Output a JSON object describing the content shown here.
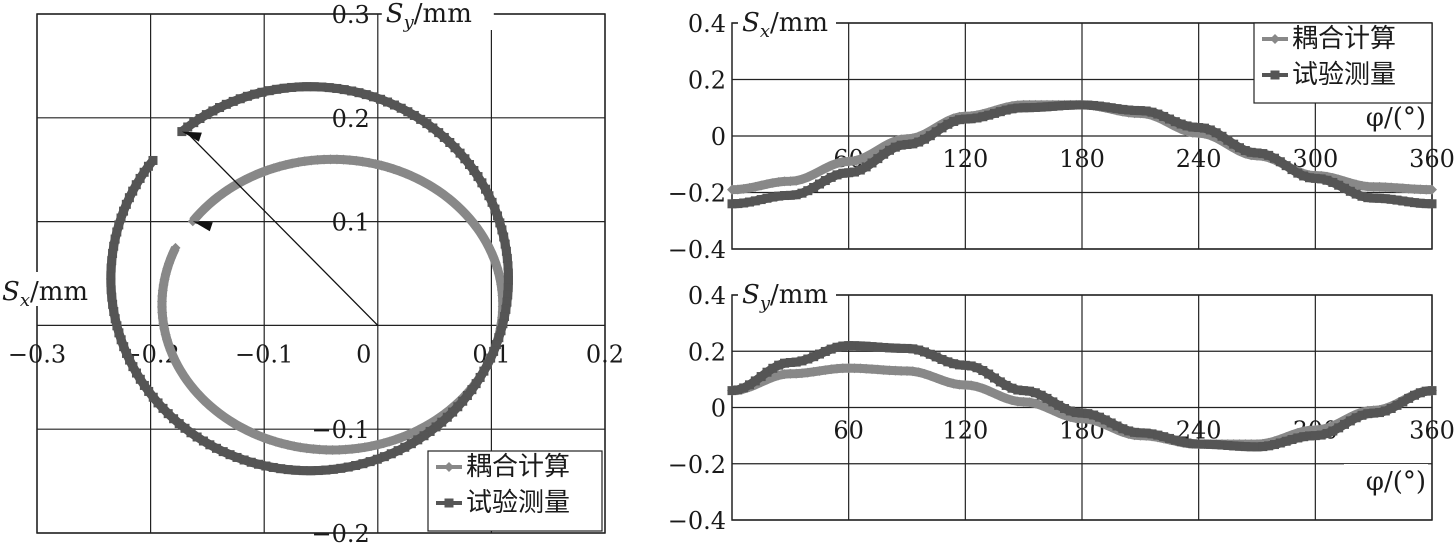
{
  "chart_data": [
    {
      "type": "line",
      "x_axis_label": "S",
      "x_axis_sub": "x",
      "x_axis_unit": "/mm",
      "y_axis_label": "S",
      "y_axis_sub": "y",
      "y_axis_unit": "/mm",
      "xlim": [
        -0.3,
        0.2
      ],
      "ylim": [
        -0.2,
        0.3
      ],
      "x_ticks": [
        {
          "value": -0.3,
          "label": "−0.3"
        },
        {
          "value": -0.2,
          "label": "−0.2"
        },
        {
          "value": -0.1,
          "label": "−0.1"
        },
        {
          "value": 0,
          "label": "0"
        },
        {
          "value": 0.1,
          "label": "0.1"
        },
        {
          "value": 0.2,
          "label": "0.2"
        }
      ],
      "y_ticks": [
        {
          "value": 0.3,
          "label": "0.3"
        },
        {
          "value": 0.2,
          "label": "0.2"
        },
        {
          "value": 0.1,
          "label": "0.1"
        },
        {
          "value": -0.1,
          "label": "−0.1"
        },
        {
          "value": -0.2,
          "label": "−0.2"
        }
      ],
      "grid": true,
      "legend_position": "bottom-right",
      "series": [
        {
          "name": "耦合计算",
          "color": "#888888",
          "marker": "diamond",
          "center": [
            -0.04,
            0.02
          ],
          "radii": [
            0.15,
            0.14
          ],
          "phase_deg": 145
        },
        {
          "name": "试验测量",
          "color": "#555555",
          "marker": "square",
          "center": [
            -0.06,
            0.045
          ],
          "radii": [
            0.175,
            0.185
          ],
          "phase_deg": 130
        }
      ],
      "annotation": "arrow from origin to the start points of both orbits"
    },
    {
      "type": "line",
      "y_axis_label": "S",
      "y_axis_sub": "x",
      "y_axis_unit": "/mm",
      "x_axis_title": "φ/(°)",
      "xlim": [
        0,
        360
      ],
      "ylim": [
        -0.4,
        0.4
      ],
      "x_ticks": [
        60,
        120,
        180,
        240,
        300,
        360
      ],
      "y_ticks": [
        {
          "value": 0.4,
          "label": "0.4"
        },
        {
          "value": 0.2,
          "label": "0.2"
        },
        {
          "value": 0,
          "label": "0"
        },
        {
          "value": -0.2,
          "label": "−0.2"
        },
        {
          "value": -0.4,
          "label": "−0.4"
        }
      ],
      "grid": true,
      "legend_position": "top-right",
      "series": [
        {
          "name": "耦合计算",
          "color": "#888888",
          "marker": "diamond",
          "x": [
            0,
            30,
            60,
            90,
            120,
            150,
            180,
            210,
            240,
            270,
            300,
            330,
            360
          ],
          "y": [
            -0.19,
            -0.16,
            -0.09,
            -0.01,
            0.07,
            0.11,
            0.11,
            0.08,
            0.01,
            -0.07,
            -0.14,
            -0.18,
            -0.19
          ]
        },
        {
          "name": "试验测量",
          "color": "#555555",
          "marker": "square",
          "x": [
            0,
            30,
            60,
            90,
            120,
            150,
            180,
            210,
            240,
            270,
            300,
            330,
            360
          ],
          "y": [
            -0.24,
            -0.21,
            -0.13,
            -0.03,
            0.06,
            0.1,
            0.11,
            0.09,
            0.03,
            -0.06,
            -0.15,
            -0.22,
            -0.24
          ]
        }
      ]
    },
    {
      "type": "line",
      "y_axis_label": "S",
      "y_axis_sub": "y",
      "y_axis_unit": "/mm",
      "x_axis_title": "φ/(°)",
      "xlim": [
        0,
        360
      ],
      "ylim": [
        -0.4,
        0.4
      ],
      "x_ticks": [
        60,
        120,
        180,
        240,
        300,
        360
      ],
      "y_ticks": [
        {
          "value": 0.4,
          "label": "0.4"
        },
        {
          "value": 0.2,
          "label": "0.2"
        },
        {
          "value": 0,
          "label": "0"
        },
        {
          "value": -0.2,
          "label": "−0.2"
        },
        {
          "value": -0.4,
          "label": "−0.4"
        }
      ],
      "grid": true,
      "series": [
        {
          "name": "耦合计算",
          "color": "#888888",
          "marker": "diamond",
          "x": [
            0,
            30,
            60,
            90,
            120,
            150,
            180,
            210,
            240,
            270,
            300,
            330,
            360
          ],
          "y": [
            0.06,
            0.12,
            0.14,
            0.13,
            0.08,
            0.02,
            -0.04,
            -0.1,
            -0.13,
            -0.13,
            -0.08,
            -0.01,
            0.06
          ]
        },
        {
          "name": "试验测量",
          "color": "#555555",
          "marker": "square",
          "x": [
            0,
            30,
            60,
            90,
            120,
            150,
            180,
            210,
            240,
            270,
            300,
            330,
            360
          ],
          "y": [
            0.06,
            0.16,
            0.22,
            0.21,
            0.15,
            0.06,
            -0.02,
            -0.09,
            -0.13,
            -0.14,
            -0.1,
            -0.02,
            0.06
          ]
        }
      ]
    }
  ]
}
